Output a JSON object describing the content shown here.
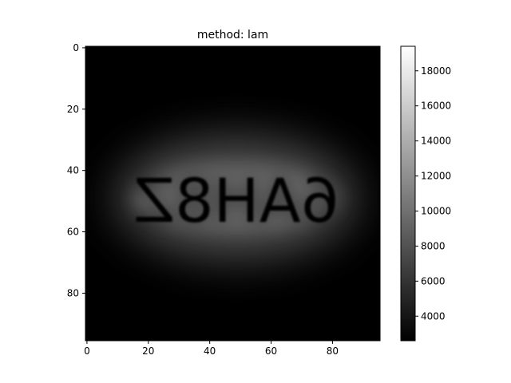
{
  "chart_data": {
    "type": "heatmap",
    "title": "method: lam",
    "colormap": "gray",
    "image_text": "6AH8Z",
    "image_text_rendering": "mirrored horizontally, bright glyphs on blurred glow",
    "grid": false,
    "x_ticks": [
      0,
      20,
      40,
      60,
      80
    ],
    "y_ticks": [
      0,
      20,
      40,
      60,
      80
    ],
    "xlim": [
      -0.5,
      95.5
    ],
    "ylim": [
      95.5,
      -0.5
    ],
    "colorbar": {
      "range": [
        2600,
        19400
      ],
      "ticks": [
        4000,
        6000,
        8000,
        10000,
        12000,
        14000,
        16000,
        18000
      ],
      "placement": "right"
    },
    "colors": {
      "background": "#000000",
      "glow": "#6a6a6a",
      "text": "#f2f2f2"
    }
  }
}
